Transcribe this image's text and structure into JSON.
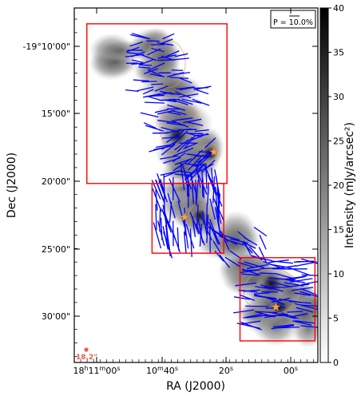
{
  "chart_data": {
    "type": "polarization map",
    "xlabel": "RA (J2000)",
    "ylabel": "Dec (J2000)",
    "colorbar_label": "Intensity (mJy/arcsec²)",
    "colorbar_range": [
      0,
      40
    ],
    "colorbar_ticks": [
      "0",
      "5",
      "10",
      "15",
      "20",
      "25",
      "30",
      "35",
      "40"
    ],
    "x_tick_labels": [
      {
        "main": "18",
        "h": "h",
        "mid": "11",
        "m": "m",
        "tail": "00",
        "s": "s"
      },
      {
        "main": "40",
        "s": "s",
        "prefix_m": "m",
        "prefix": "10"
      },
      {
        "main": "20",
        "s": "s"
      },
      {
        "main": "00",
        "s": "s"
      }
    ],
    "x_tick_label_text": [
      "18h11m00s",
      "10m40s",
      "20s",
      "00s"
    ],
    "y_tick_labels": [
      "-19°10'00\"",
      "15'00\"",
      "20'00\"",
      "25'00\"",
      "30'00\""
    ],
    "legend_text": "P = 10.0%",
    "beam_label": "18.2\"",
    "colors": {
      "vectors": "#0000ff",
      "boxes": "#ff0000",
      "contours": "#e69a4a",
      "stars": "#f5a050",
      "beam": "#e8604a"
    },
    "boxes": [
      {
        "ra_range": [
          "18h11m03s",
          "18h10m20s"
        ],
        "dec_range": [
          "-19°08'20\"",
          "-19°20'10\""
        ]
      },
      {
        "ra_range": [
          "18h10m43s",
          "18h10m21s"
        ],
        "dec_range": [
          "-19°20'10\"",
          "-19°25'20\""
        ]
      },
      {
        "ra_range": [
          "18h10m16s",
          "18h09m53s"
        ],
        "dec_range": [
          "-19°25'40\"",
          "-19°31'50\""
        ]
      }
    ],
    "stars": [
      {
        "ra": "18h10m24s",
        "dec": "-19°17'50\""
      },
      {
        "ra": "18h10m33s",
        "dec": "-19°22'40\""
      },
      {
        "ra": "18h10m05s",
        "dec": "-19°29'20\""
      }
    ]
  }
}
